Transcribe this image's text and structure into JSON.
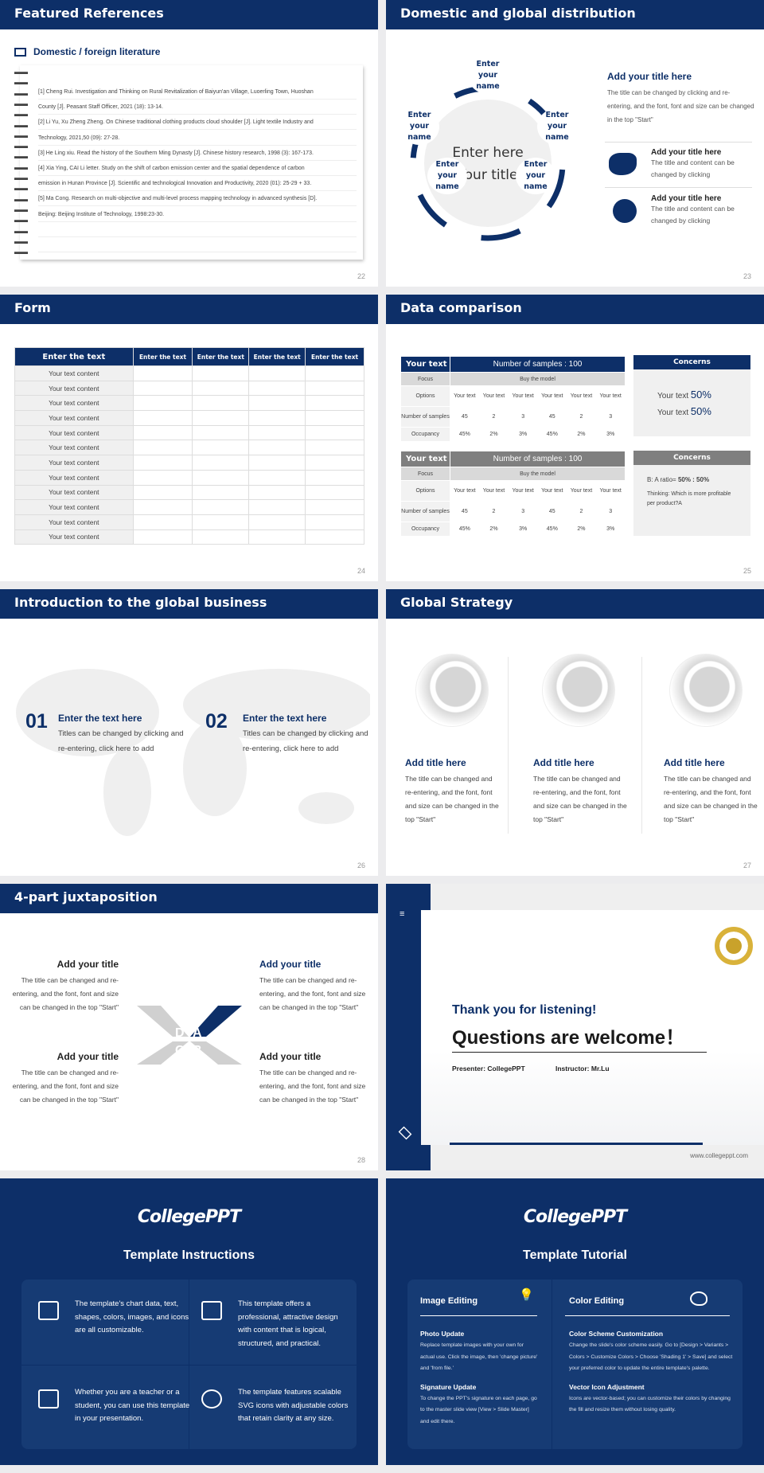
{
  "colors": {
    "brand": "#0d2f68",
    "gray_header": "#7f7f7f",
    "background": "#ececee"
  },
  "s22": {
    "title": "Featured References",
    "subtitle": "Domestic / foreign literature",
    "icon": "book-icon",
    "page": "22",
    "lines": [
      "[1] Cheng Rui. Investigation and Thinking on Rural Revitalization of Baiyun'an Village, Luoerling Town, Huoshan",
      "County [J]. Peasant Staff Officer, 2021 (18): 13-14.",
      "[2] Li Yu, Xu Zheng Zheng. On Chinese traditional clothing products cloud shoulder [J]. Light textile Industry and",
      "Technology, 2021,50 (09): 27-28.",
      "[3] He Ling xiu. Read the history of the Southern Ming Dynasty [J]. Chinese history research, 1998 (3): 167-173.",
      "[4] Xia Ying, CAI Li letter. Study on the shift of carbon emission center and the spatial dependence of carbon",
      "emission in Hunan Province [J]. Scientific and technological Innovation and Productivity, 2020 (01): 25-29 + 33.",
      "[5] Ma Cong. Research on multi-objective and multi-level process mapping technology in advanced synthesis [D].",
      "Beijing: Beijing Institute of Technology, 1998:23-30.",
      "",
      ""
    ]
  },
  "s23": {
    "title": "Domestic and global distribution",
    "page": "23",
    "center": [
      "Enter here",
      "Your title"
    ],
    "node": [
      "Enter",
      "your",
      "name"
    ],
    "main_title": "Add your title here",
    "main_text": "The title can be changed by clicking and re-entering, and the font, font and size can be changed in the top \"Start\"",
    "items": [
      {
        "icon": "china-map-icon",
        "title": "Add your title here",
        "text": "The title and content can be changed by clicking"
      },
      {
        "icon": "globe-icon",
        "title": "Add your title here",
        "text": "The title and content can be changed by clicking"
      }
    ]
  },
  "s24": {
    "title": "Form",
    "page": "24",
    "headers": [
      "Enter the text",
      "Enter the text",
      "Enter the text",
      "Enter the text",
      "Enter the text"
    ],
    "cell": "Your text content"
  },
  "s25": {
    "title": "Data comparison",
    "page": "25",
    "tables": [
      {
        "head_left": "Your text",
        "head_right": "Number of samples : 100",
        "focus": "Focus",
        "focus_val": "Buy the model",
        "options": "Options",
        "option_vals": [
          "Your text",
          "Your text",
          "Your text",
          "Your text",
          "Your text",
          "Your text"
        ],
        "samples": "Number of samples",
        "sample_vals": [
          "45",
          "2",
          "3",
          "45",
          "2",
          "3"
        ],
        "occupancy": "Occupancy",
        "occ_vals": [
          "45%",
          "2%",
          "3%",
          "45%",
          "2%",
          "3%"
        ]
      },
      {
        "head_left": "Your text",
        "head_right": "Number of samples : 100",
        "focus": "Focus",
        "focus_val": "Buy the model",
        "options": "Options",
        "option_vals": [
          "Your text",
          "Your text",
          "Your text",
          "Your text",
          "Your text",
          "Your text"
        ],
        "samples": "Number of samples",
        "sample_vals": [
          "45",
          "2",
          "3",
          "45",
          "2",
          "3"
        ],
        "occupancy": "Occupancy",
        "occ_vals": [
          "45%",
          "2%",
          "3%",
          "45%",
          "2%",
          "3%"
        ]
      }
    ],
    "concerns1": {
      "title": "Concerns",
      "l1": "Your text",
      "v1": "50%",
      "l2": "Your text",
      "v2": "50%"
    },
    "concerns2": {
      "title": "Concerns",
      "ratio_label": "B: A ratio=",
      "ratio": "50% : 50%",
      "thinking": "Thinking: Which is more profitable per product?A"
    }
  },
  "s26": {
    "title": "Introduction to the global business",
    "page": "26",
    "items": [
      {
        "num": "01",
        "title": "Enter the text here",
        "text": "Titles can be changed by clicking and re-entering, click here to add"
      },
      {
        "num": "02",
        "title": "Enter the text here",
        "text": "Titles can be changed by clicking and re-entering, click here to add"
      }
    ]
  },
  "s27": {
    "title": "Global Strategy",
    "page": "27",
    "cols": [
      {
        "title": "Add title here",
        "text": "The title can be changed and re-entering, and the font, font and size can be changed in the top \"Start\""
      },
      {
        "title": "Add title here",
        "text": "The title can be changed and re-entering, and the font, font and size can be changed in the top \"Start\""
      },
      {
        "title": "Add title here",
        "text": "The title can be changed and re-entering, and the font, font and size can be changed in the top \"Start\""
      }
    ]
  },
  "s28": {
    "title": "4-part juxtaposition",
    "page": "28",
    "letters": [
      "A",
      "B",
      "C",
      "D"
    ],
    "items": [
      {
        "title": "Add your title",
        "text": "The title can be changed and re-entering, and the font, font and size can be changed in the top \"Start\""
      },
      {
        "title": "Add your title",
        "text": "The title can be changed and re-entering, and the font, font and size can be changed in the top \"Start\""
      },
      {
        "title": "Add your title",
        "text": "The title can be changed and re-entering, and the font, font and size can be changed in the top \"Start\""
      },
      {
        "title": "Add your title",
        "text": "The title can be changed and re-entering, and the font, font and size can be changed in the top \"Start\""
      }
    ]
  },
  "s29": {
    "thanks": "Thank you for listening!",
    "questions": "Questions are welcome！",
    "presenter": "Presenter: CollegePPT",
    "instructor": "Instructor: Mr.Lu",
    "url": "www.collegeppt.com",
    "logo": "university-seal"
  },
  "s30": {
    "logo": "CollegePPT",
    "title": "Template Instructions",
    "cells": [
      {
        "icon": "pages-icon",
        "text": "The template's chart data, text, shapes, colors, images, and icons are all customizable."
      },
      {
        "icon": "stack-icon",
        "text": "This template offers a professional, attractive design with content that is logical, structured, and practical."
      },
      {
        "icon": "teacher-icon",
        "text": "Whether you are a teacher or a student, you can use this template in your presentation."
      },
      {
        "icon": "ball-icon",
        "text": "The template features scalable SVG icons with adjustable colors that retain clarity at any size."
      }
    ]
  },
  "s31": {
    "logo": "CollegePPT",
    "title": "Template Tutorial",
    "left": {
      "heading": "Image Editing",
      "icon": "lightbulb-icon",
      "s1_title": "Photo Update",
      "s1_text": "Replace template images with your own for actual use. Click the image, then 'change picture' and 'from file.'",
      "s2_title": "Signature Update",
      "s2_text": "To change the PPT's signature on each page, go to the master slide view [View > Slide Master] and edit there."
    },
    "right": {
      "heading": "Color Editing",
      "icon": "palette-icon",
      "s1_title": "Color Scheme Customization",
      "s1_text": "Change the slide's color scheme easily. Go to [Design > Variants > Colors > Customize Colors > Choose 'Shading 1' > Save] and select your preferred color to update the entire template's palette.",
      "s2_title": "Vector Icon Adjustment",
      "s2_text": "Icons are vector-based; you can customize their colors by changing the fill and resize them without losing quality."
    }
  }
}
